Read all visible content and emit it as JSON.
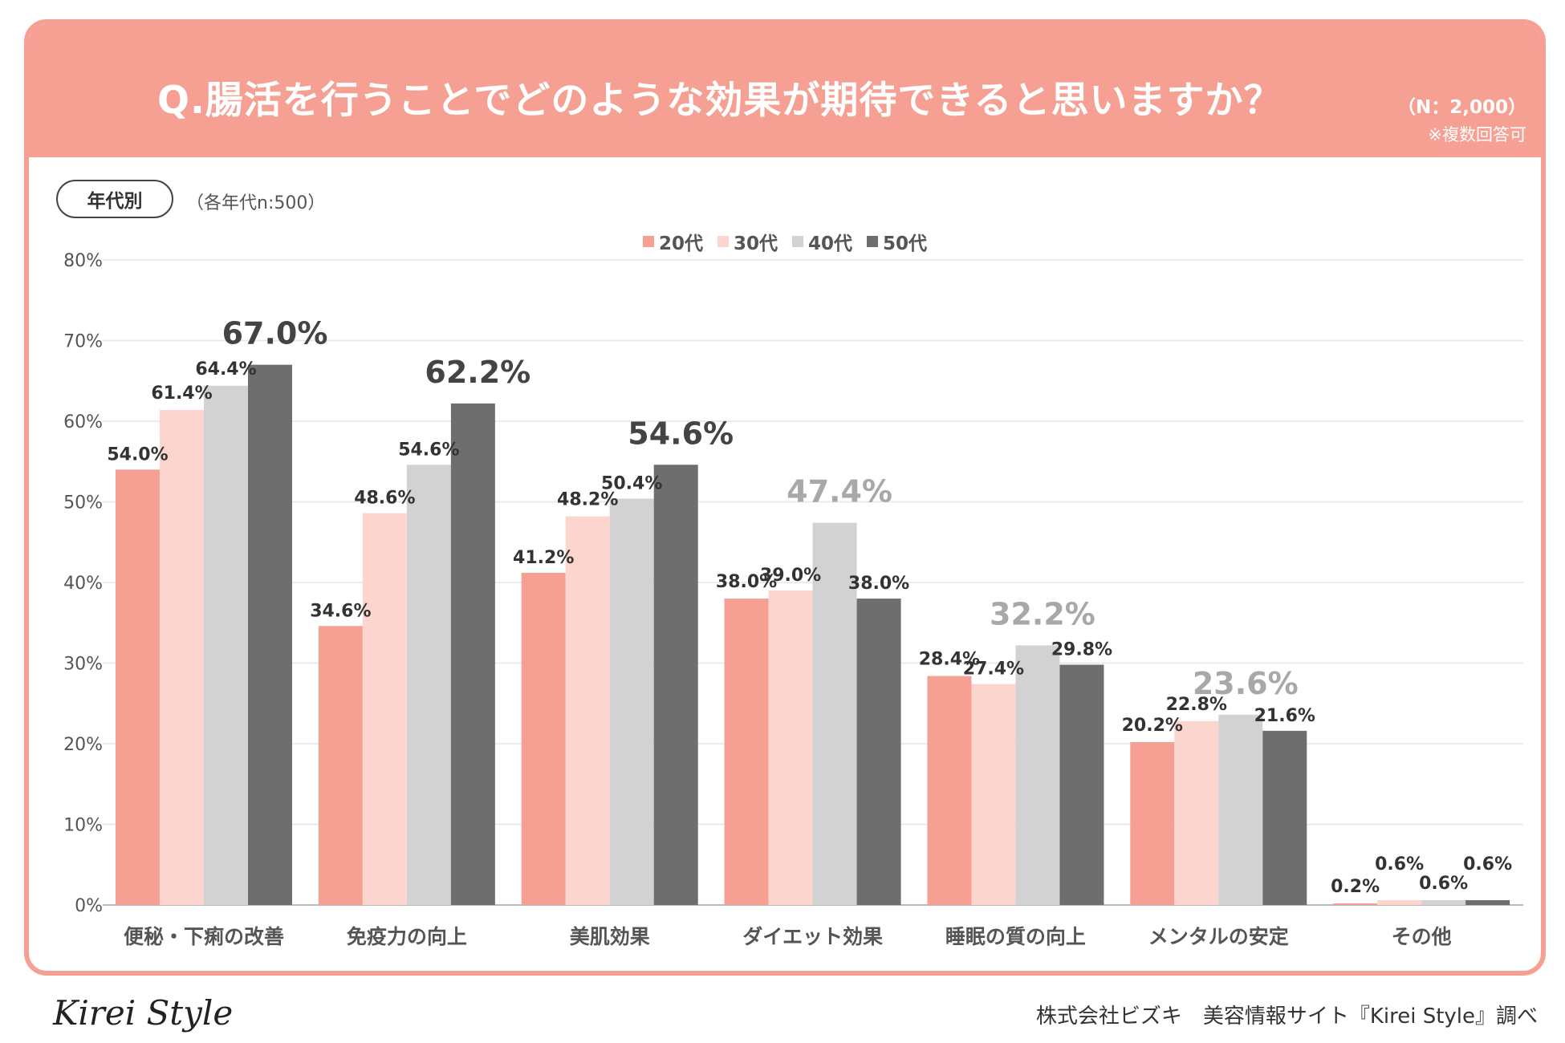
{
  "header": {
    "title": "Q.腸活を行うことでどのような効果が期待できると思いますか？",
    "n_label": "（N：2,000）",
    "multi_note": "※複数回答可"
  },
  "segment": {
    "label": "年代別",
    "sample_note": "（各年代n:500）"
  },
  "legend": [
    {
      "name": "20代",
      "color": "#f5a093"
    },
    {
      "name": "30代",
      "color": "#fcd5cf"
    },
    {
      "name": "40代",
      "color": "#d2d2d2"
    },
    {
      "name": "50代",
      "color": "#6e6e6e"
    }
  ],
  "chart_data": {
    "type": "bar",
    "title": "Q.腸活を行うことでどのような効果が期待できると思いますか？",
    "categories": [
      "便秘・下痢の改善",
      "免疫力の向上",
      "美肌効果",
      "ダイエット効果",
      "睡眠の質の向上",
      "メンタルの安定",
      "その他"
    ],
    "series": [
      {
        "name": "20代",
        "color": "#f5a093",
        "values": [
          54.0,
          34.6,
          41.2,
          38.0,
          28.4,
          20.2,
          0.2
        ]
      },
      {
        "name": "30代",
        "color": "#fcd5cf",
        "values": [
          61.4,
          48.6,
          48.2,
          39.0,
          27.4,
          22.8,
          0.6
        ]
      },
      {
        "name": "40代",
        "color": "#d2d2d2",
        "values": [
          64.4,
          54.6,
          50.4,
          47.4,
          32.2,
          23.6,
          0.6
        ]
      },
      {
        "name": "50代",
        "color": "#6e6e6e",
        "values": [
          67.0,
          62.2,
          54.6,
          38.0,
          29.8,
          21.6,
          0.6
        ]
      }
    ],
    "data_labels": [
      [
        "54.0%",
        "61.4%",
        "64.4%",
        "67.0%"
      ],
      [
        "34.6%",
        "48.6%",
        "54.6%",
        "62.2%"
      ],
      [
        "41.2%",
        "48.2%",
        "50.4%",
        "54.6%"
      ],
      [
        "38.0%",
        "39.0%",
        "47.4%",
        "38.0%"
      ],
      [
        "28.4%",
        "27.4%",
        "32.2%",
        "29.8%"
      ],
      [
        "20.2%",
        "22.8%",
        "23.6%",
        "21.6%"
      ],
      [
        "0.2%",
        "0.6%",
        "0.6%",
        "0.6%"
      ]
    ],
    "highlight_series_index": [
      3,
      3,
      3,
      2,
      2,
      2,
      -1
    ],
    "y_ticks": [
      "0%",
      "10%",
      "20%",
      "30%",
      "40%",
      "50%",
      "60%",
      "70%",
      "80%"
    ],
    "ylim": [
      0,
      80
    ],
    "xlabel": "",
    "ylabel": "",
    "grid": true,
    "legend_position": "top-center"
  },
  "footer": {
    "logo": "Kirei Style",
    "credit": "株式会社ビズキ　美容情報サイト『Kirei Style』調べ"
  }
}
